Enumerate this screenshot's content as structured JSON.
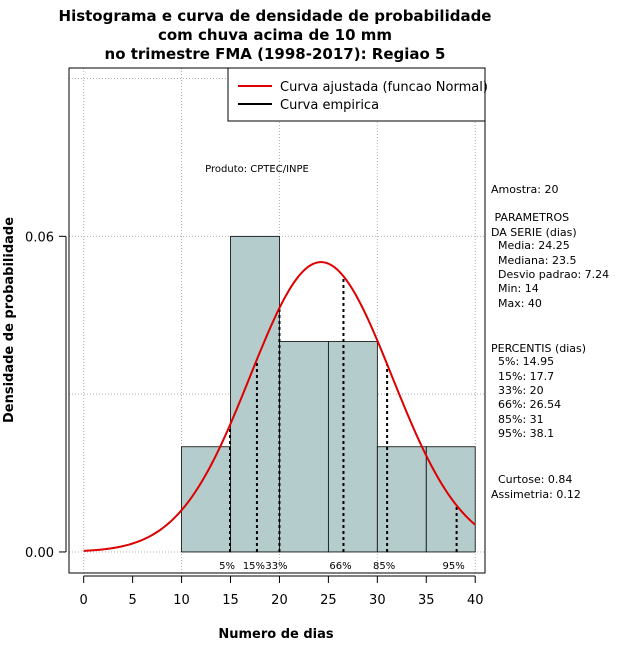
{
  "chart_data": {
    "type": "bar",
    "title_lines": [
      "Histograma e curva de densidade de probabilidade",
      "com chuva acima de 10 mm",
      "no trimestre FMA (1998-2017): Regiao 5"
    ],
    "xlabel": "Numero de dias",
    "ylabel": "Densidade de probabilidade",
    "xlim": [
      -1.5,
      41
    ],
    "ylim": [
      -0.004,
      0.092
    ],
    "x_ticks": [
      "0",
      "5",
      "10",
      "15",
      "20",
      "25",
      "30",
      "35",
      "40"
    ],
    "y_ticks": [
      "0.00",
      "0.06"
    ],
    "bins": [
      {
        "from": 10,
        "to": 15,
        "density": 0.02
      },
      {
        "from": 15,
        "to": 20,
        "density": 0.06
      },
      {
        "from": 20,
        "to": 25,
        "density": 0.04
      },
      {
        "from": 25,
        "to": 30,
        "density": 0.04
      },
      {
        "from": 30,
        "to": 35,
        "density": 0.02
      },
      {
        "from": 35,
        "to": 40,
        "density": 0.02
      }
    ],
    "normal_curve": {
      "mean": 24.25,
      "sd": 7.24,
      "x_from": 0,
      "x_to": 40
    },
    "percentile_lines": [
      {
        "label": "5%",
        "x": 14.95
      },
      {
        "label": "15%",
        "x": 17.7
      },
      {
        "label": "33%",
        "x": 20
      },
      {
        "label": "66%",
        "x": 26.54
      },
      {
        "label": "85%",
        "x": 31
      },
      {
        "label": "95%",
        "x": 38.1
      }
    ],
    "legend": [
      {
        "label": "Curva ajustada (funcao Normal)",
        "color": "#dd0000"
      },
      {
        "label": "Curva empirica",
        "color": "#000000"
      }
    ],
    "bar_color": "#b4cccb",
    "curve_color": "#dd0000",
    "product_label": "Produto: CPTEC/INPE"
  },
  "side_panel": {
    "lines": [
      "Amostra: 20",
      " PARAMETROS",
      "DA SERIE (dias)",
      "  Media: 24.25",
      "  Mediana: 23.5",
      "  Desvio padrao: 7.24",
      "  Min: 14",
      "  Max: 40",
      "PERCENTIS (dias)",
      "  5%: 14.95",
      "  15%: 17.7",
      "  33%: 20",
      "  66%: 26.54",
      "  85%: 31",
      "  95%: 38.1",
      "  Curtose: 0.84",
      "Assimetria: 0.12"
    ]
  }
}
